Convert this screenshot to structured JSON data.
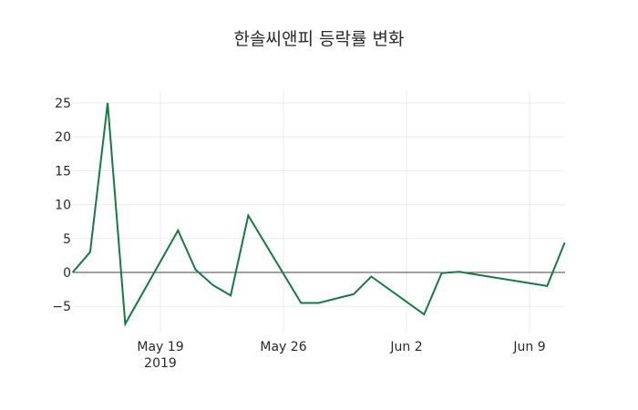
{
  "chart_data": {
    "type": "line",
    "title": "한솔씨앤피 등락률 변화",
    "xlabel": "",
    "ylabel": "",
    "ylim": [
      -8.9,
      26.7
    ],
    "grid": true,
    "legend": false,
    "line_color": "#177a45",
    "x_ticks": [
      {
        "date": "2019-05-19",
        "label": "May 19",
        "sublabel": "2019"
      },
      {
        "date": "2019-05-26",
        "label": "May 26",
        "sublabel": ""
      },
      {
        "date": "2019-06-02",
        "label": "Jun 2",
        "sublabel": ""
      },
      {
        "date": "2019-06-09",
        "label": "Jun 9",
        "sublabel": ""
      }
    ],
    "y_ticks": [
      25,
      20,
      15,
      10,
      5,
      0,
      -5
    ],
    "y_tick_labels": [
      "25",
      "20",
      "15",
      "10",
      "5",
      "0",
      "−5"
    ],
    "x": [
      "2019-05-14",
      "2019-05-15",
      "2019-05-16",
      "2019-05-17",
      "2019-05-20",
      "2019-05-21",
      "2019-05-22",
      "2019-05-23",
      "2019-05-24",
      "2019-05-27",
      "2019-05-28",
      "2019-05-30",
      "2019-05-31",
      "2019-06-03",
      "2019-06-04",
      "2019-06-05",
      "2019-06-10",
      "2019-06-11"
    ],
    "series": [
      {
        "name": "등락률",
        "values": [
          0.0,
          3.0,
          25.0,
          -7.6,
          6.2,
          0.4,
          -1.9,
          -3.4,
          8.4,
          -4.5,
          -4.5,
          -3.2,
          -0.6,
          -6.2,
          -0.1,
          0.1,
          -2.0,
          4.4
        ]
      }
    ]
  }
}
